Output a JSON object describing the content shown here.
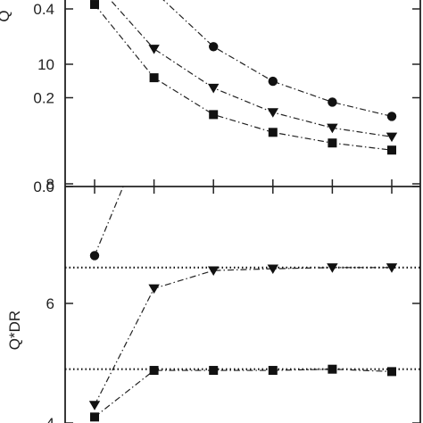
{
  "chart_data": [
    {
      "type": "line",
      "panel": "top",
      "ylabel": "Q",
      "ylim": [
        0.0,
        0.45
      ],
      "yticks": [
        0.0,
        0.2,
        0.4
      ],
      "ytick_labels": [
        "0.0",
        "0.2",
        "0.4"
      ],
      "x": [
        1,
        2,
        3,
        4,
        5,
        6
      ],
      "grid": false,
      "series": [
        {
          "marker": "circle",
          "values": [
            0.52,
            0.44,
            0.315,
            0.237,
            0.19,
            0.158
          ]
        },
        {
          "marker": "triangle-down",
          "values": [
            0.46,
            0.31,
            0.222,
            0.167,
            0.132,
            0.112
          ]
        },
        {
          "marker": "square",
          "values": [
            0.41,
            0.245,
            0.162,
            0.122,
            0.098,
            0.082
          ]
        }
      ]
    },
    {
      "type": "line",
      "panel": "bottom",
      "ylabel": "Q*DR",
      "ylim": [
        4.0,
        11.0
      ],
      "yticks": [
        4,
        6,
        8,
        10
      ],
      "ytick_labels": [
        "4",
        "6",
        "8",
        "10"
      ],
      "x": [
        1,
        2,
        3,
        4,
        5,
        6
      ],
      "grid": false,
      "reference_lines": [
        9.45,
        6.6,
        4.9
      ],
      "series": [
        {
          "marker": "circle",
          "values": [
            6.8,
            9.2,
            9.42,
            9.45,
            9.45,
            9.43
          ]
        },
        {
          "marker": "triangle-down",
          "values": [
            4.3,
            6.25,
            6.55,
            6.58,
            6.6,
            6.6
          ]
        },
        {
          "marker": "square",
          "values": [
            4.1,
            4.88,
            4.88,
            4.88,
            4.9,
            4.86
          ]
        }
      ]
    }
  ]
}
